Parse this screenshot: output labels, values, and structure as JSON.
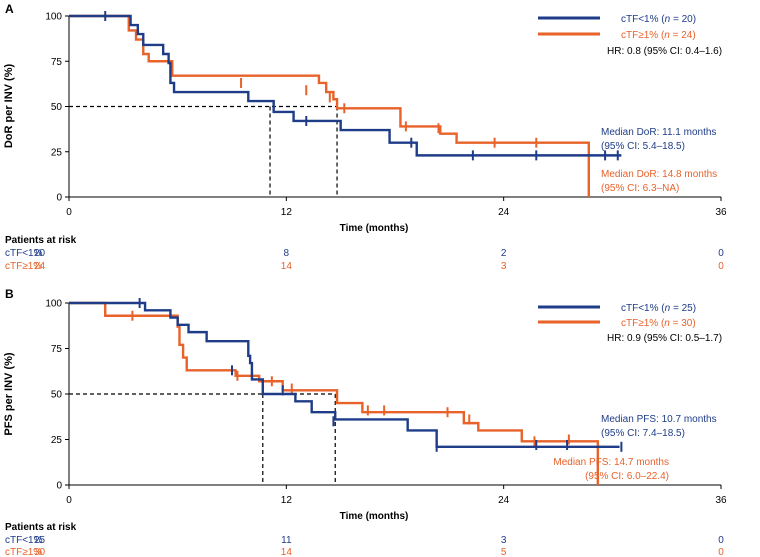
{
  "chart_data": [
    {
      "panel": "A",
      "type": "kaplan-meier",
      "ylabel": "DoR per INV (%)",
      "xlabel": "Time (months)",
      "xlim": [
        0,
        36
      ],
      "ylim": [
        0,
        100
      ],
      "xticks": [
        0,
        12,
        24,
        36
      ],
      "yticks": [
        0,
        25,
        50,
        75,
        100
      ],
      "hr_text": "HR: 0.8 (95% CI: 0.4–1.6)",
      "median_line": {
        "y": 50,
        "x": [
          11.1,
          14.8
        ]
      },
      "series": [
        {
          "id": "low",
          "name": "cTF<1%",
          "n_text": "n",
          "n_value": " = 20",
          "color": "#1f3c88",
          "steps": [
            [
              0,
              100
            ],
            [
              3,
              100
            ],
            [
              3.4,
              95
            ],
            [
              3.8,
              90
            ],
            [
              4.1,
              84
            ],
            [
              5.2,
              79
            ],
            [
              5.5,
              74
            ],
            [
              5.6,
              63
            ],
            [
              5.8,
              58
            ],
            [
              9.7,
              58
            ],
            [
              9.9,
              53
            ],
            [
              11.1,
              53
            ],
            [
              11.3,
              47
            ],
            [
              12.2,
              47
            ],
            [
              12.4,
              42
            ],
            [
              14.8,
              42
            ],
            [
              15,
              37
            ],
            [
              17.5,
              37
            ],
            [
              17.7,
              30
            ],
            [
              19,
              30
            ],
            [
              19.2,
              23
            ],
            [
              30.5,
              23
            ]
          ],
          "censors": [
            [
              2,
              100
            ],
            [
              13.1,
              42
            ],
            [
              18.9,
              30
            ],
            [
              22.3,
              23
            ],
            [
              25.8,
              23
            ],
            [
              29.6,
              23
            ],
            [
              30.3,
              23
            ]
          ],
          "median_text": "Median DoR: 11.1 months",
          "ci_text": "(95% CI: 5.4–18.5)",
          "risk_values": [
            "20",
            "8",
            "2",
            "0"
          ]
        },
        {
          "id": "high",
          "name": "cTF≥1%",
          "n_text": "n",
          "n_value": " = 24",
          "color": "#e8622a",
          "steps": [
            [
              0,
              100
            ],
            [
              3,
              100
            ],
            [
              3.3,
              92
            ],
            [
              3.7,
              87
            ],
            [
              4.1,
              79
            ],
            [
              4.4,
              75
            ],
            [
              5.4,
              75
            ],
            [
              5.7,
              67
            ],
            [
              13.5,
              67
            ],
            [
              13.8,
              63
            ],
            [
              14.2,
              58
            ],
            [
              14.6,
              54
            ],
            [
              14.8,
              49
            ],
            [
              18,
              49
            ],
            [
              18.3,
              39
            ],
            [
              20.2,
              39
            ],
            [
              20.5,
              35
            ],
            [
              21.4,
              30
            ],
            [
              28.7,
              30
            ],
            [
              28.7,
              0
            ]
          ],
          "censors": [
            [
              9.5,
              63
            ],
            [
              13.1,
              59
            ],
            [
              14.4,
              55
            ],
            [
              15.2,
              49
            ],
            [
              18.6,
              39
            ],
            [
              20.4,
              38
            ],
            [
              23.5,
              30
            ],
            [
              25.8,
              30
            ]
          ],
          "median_text": "Median DoR: 14.8 months",
          "ci_text": "(95% CI: 6.3–NA)",
          "risk_values": [
            "24",
            "14",
            "3",
            "0"
          ]
        }
      ],
      "risk_table": {
        "title": "Patients at risk",
        "labels": [
          "cTF<1%",
          "cTF≥1%"
        ],
        "times": [
          0,
          12,
          24,
          36
        ]
      }
    },
    {
      "panel": "B",
      "type": "kaplan-meier",
      "ylabel": "PFS per INV (%)",
      "xlabel": "Time (months)",
      "xlim": [
        0,
        36
      ],
      "ylim": [
        0,
        100
      ],
      "xticks": [
        0,
        12,
        24,
        36
      ],
      "yticks": [
        0,
        25,
        50,
        75,
        100
      ],
      "hr_text": "HR: 0.9 (95% CI: 0.5–1.7)",
      "median_line": {
        "y": 50,
        "x": [
          10.7,
          14.7
        ]
      },
      "series": [
        {
          "id": "low",
          "name": "cTF<1%",
          "n_text": "n",
          "n_value": " = 25",
          "color": "#1f3c88",
          "steps": [
            [
              0,
              100
            ],
            [
              3.9,
              100
            ],
            [
              4.2,
              96
            ],
            [
              5.4,
              96
            ],
            [
              5.6,
              92
            ],
            [
              6.0,
              88
            ],
            [
              6.6,
              84
            ],
            [
              7.5,
              84
            ],
            [
              7.6,
              79
            ],
            [
              9.8,
              79
            ],
            [
              9.9,
              71
            ],
            [
              10,
              67
            ],
            [
              10.1,
              58
            ],
            [
              10.6,
              58
            ],
            [
              10.7,
              50
            ],
            [
              12.3,
              50
            ],
            [
              12.5,
              46
            ],
            [
              13.2,
              46
            ],
            [
              13.4,
              40
            ],
            [
              14.5,
              40
            ],
            [
              14.7,
              36
            ],
            [
              18.5,
              36
            ],
            [
              18.7,
              30
            ],
            [
              20.2,
              30
            ],
            [
              20.3,
              21
            ],
            [
              30.4,
              21
            ]
          ],
          "censors": [
            [
              3.9,
              100
            ],
            [
              9,
              63
            ],
            [
              11.8,
              52
            ],
            [
              14.6,
              35
            ],
            [
              20.3,
              21
            ],
            [
              25.8,
              22
            ],
            [
              27.5,
              22
            ],
            [
              30.5,
              21
            ]
          ],
          "median_text": "Median PFS: 10.7 months",
          "ci_text": "(95% CI: 7.4–18.5)",
          "risk_values": [
            "25",
            "11",
            "3",
            "0"
          ]
        },
        {
          "id": "high",
          "name": "cTF≥1%",
          "n_text": "n",
          "n_value": " = 30",
          "color": "#e8622a",
          "steps": [
            [
              0,
              100
            ],
            [
              1.8,
              100
            ],
            [
              2,
              93
            ],
            [
              5.7,
              93
            ],
            [
              6,
              87
            ],
            [
              6.1,
              77
            ],
            [
              6.3,
              70
            ],
            [
              6.5,
              63
            ],
            [
              9,
              63
            ],
            [
              9.2,
              60
            ],
            [
              10.3,
              60
            ],
            [
              10.5,
              57
            ],
            [
              11.6,
              57
            ],
            [
              11.8,
              52
            ],
            [
              14.6,
              52
            ],
            [
              14.8,
              45
            ],
            [
              16,
              45
            ],
            [
              16.2,
              40
            ],
            [
              21.6,
              40
            ],
            [
              21.8,
              34
            ],
            [
              22.4,
              34
            ],
            [
              22.6,
              30
            ],
            [
              24.8,
              30
            ],
            [
              25,
              24
            ],
            [
              29.2,
              24
            ],
            [
              29.2,
              0
            ]
          ],
          "censors": [
            [
              3.5,
              93
            ],
            [
              9.3,
              60
            ],
            [
              11.2,
              57
            ],
            [
              12.3,
              53
            ],
            [
              16.5,
              41
            ],
            [
              17.4,
              41
            ],
            [
              20.9,
              40
            ],
            [
              22.1,
              36
            ],
            [
              25.7,
              24
            ],
            [
              27.6,
              25
            ]
          ],
          "median_text": "Median PFS: 14.7 months",
          "ci_text": "(95% CI: 6.0–22.4)",
          "risk_values": [
            "30",
            "14",
            "5",
            "0"
          ]
        }
      ],
      "risk_table": {
        "title": "Patients at risk",
        "labels": [
          "cTF<1%",
          "cTF≥1%"
        ],
        "times": [
          0,
          12,
          24,
          36
        ]
      }
    }
  ]
}
